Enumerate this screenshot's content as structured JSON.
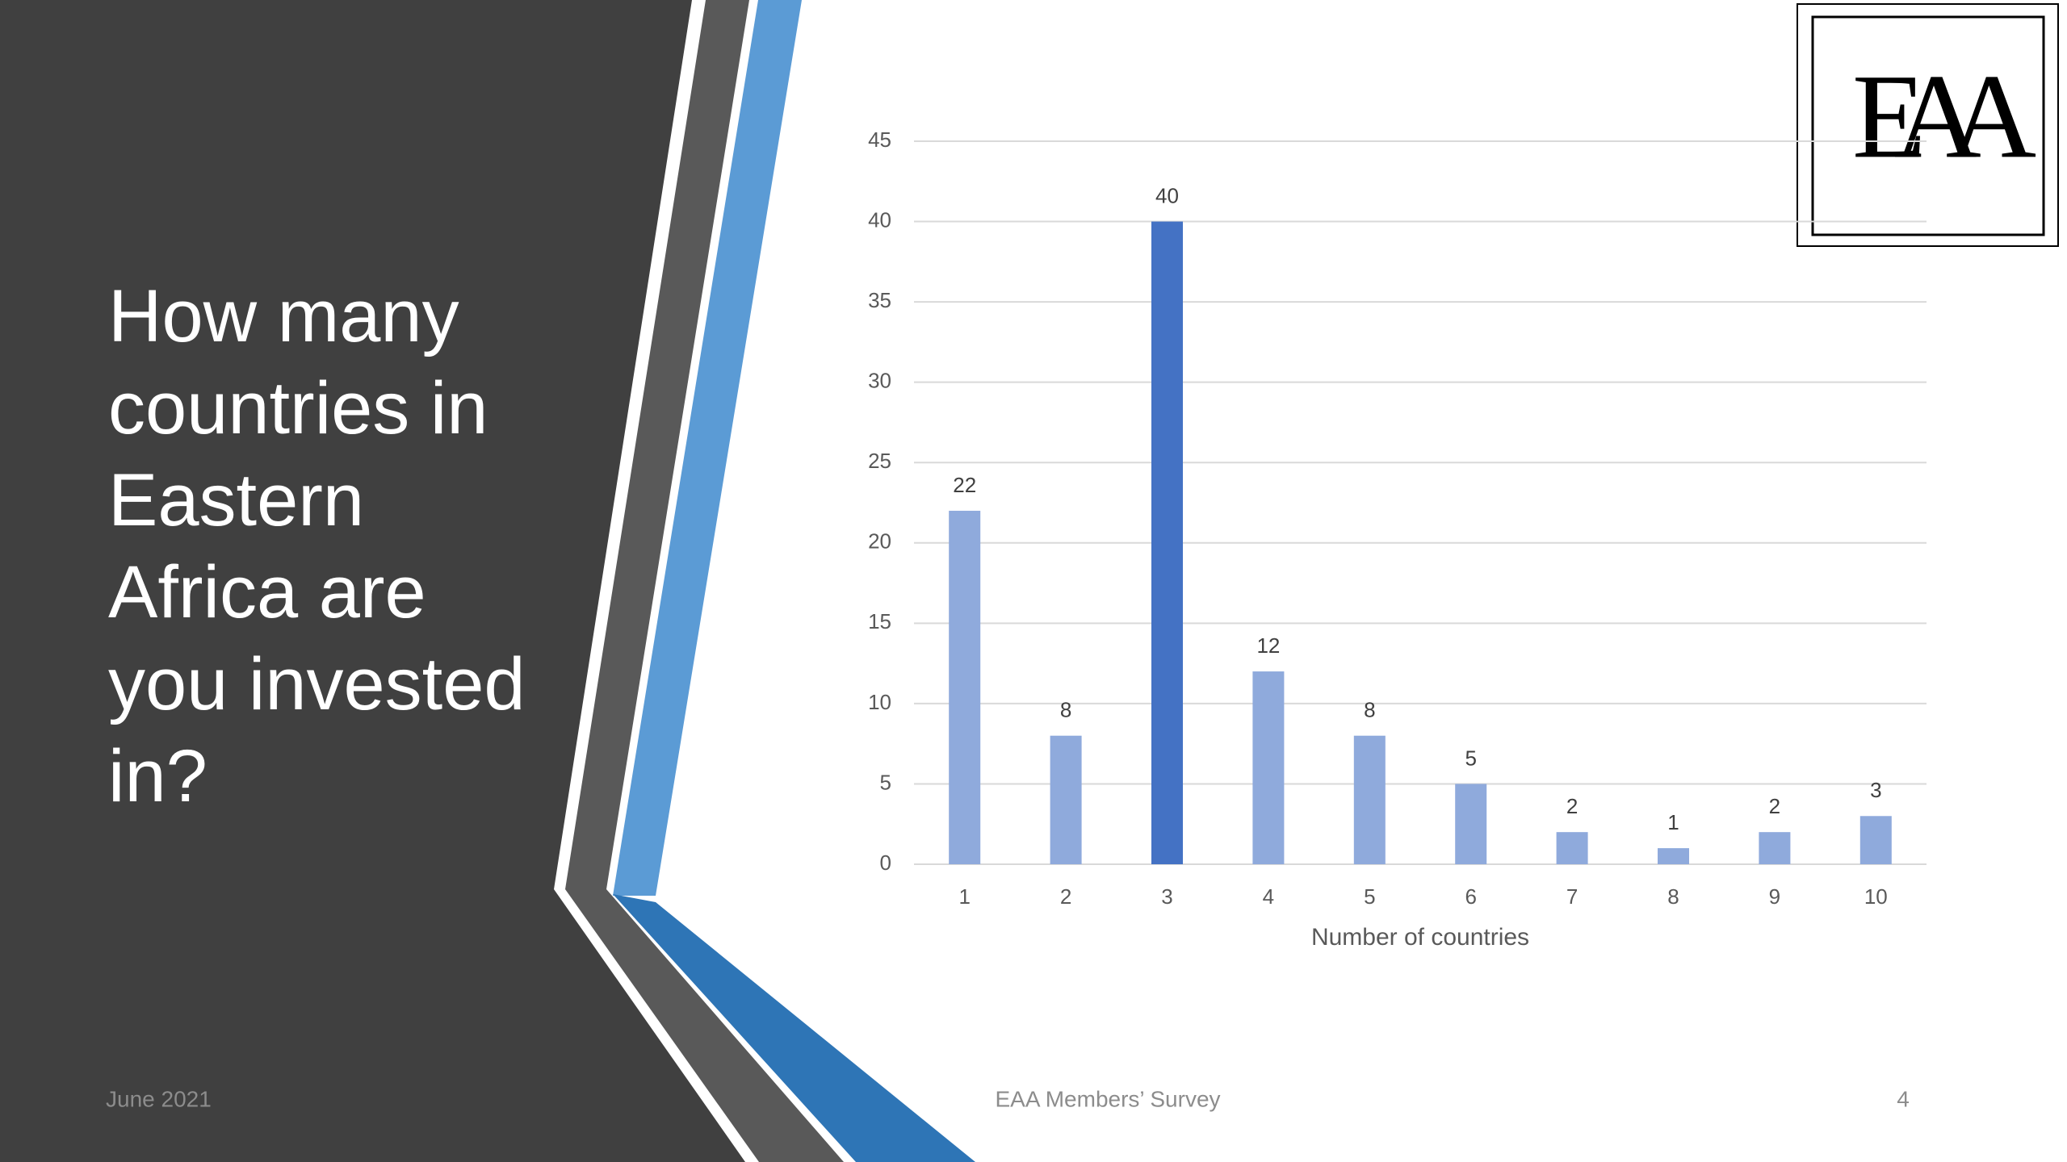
{
  "slide": {
    "title": "How many\ncountries in\nEastern\nAfrica are\nyou invested\nin?",
    "date": "June 2021",
    "footer": "EAA Members’ Survey",
    "page_number": "4",
    "logo": "EAA"
  },
  "chart_data": {
    "type": "bar",
    "x_label": "Number of countries",
    "categories": [
      "1",
      "2",
      "3",
      "4",
      "5",
      "6",
      "7",
      "8",
      "9",
      "10"
    ],
    "values": [
      22,
      8,
      40,
      12,
      8,
      5,
      2,
      1,
      2,
      3
    ],
    "colors": [
      "#8faadc",
      "#8faadc",
      "#4472c4",
      "#8faadc",
      "#8faadc",
      "#8faadc",
      "#8faadc",
      "#8faadc",
      "#8faadc",
      "#8faadc"
    ],
    "ylim": [
      0,
      45
    ],
    "yticks": [
      0,
      5,
      10,
      15,
      20,
      25,
      30,
      35,
      40,
      45
    ],
    "grid": true,
    "data_labels": true
  }
}
